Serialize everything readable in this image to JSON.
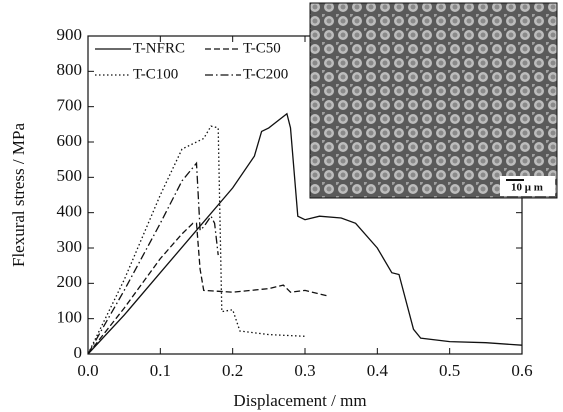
{
  "chart_data": {
    "type": "line",
    "xlabel": "Displacement / mm",
    "ylabel": "Flexural stress / MPa",
    "xlim": [
      0,
      0.6
    ],
    "ylim": [
      0,
      900
    ],
    "xticks": [
      {
        "value": 0,
        "label": "0.0"
      },
      0.1,
      0.2,
      0.3,
      0.4,
      0.5,
      0.6
    ],
    "yticks": [
      0,
      100,
      200,
      300,
      400,
      500,
      600,
      700,
      800,
      900
    ],
    "legend": "upper left",
    "inset_scale_bar": "10 μ m",
    "series": [
      {
        "name": "T-NFRC",
        "color": "#111111",
        "dash": "none",
        "x": [
          0,
          0.05,
          0.1,
          0.15,
          0.2,
          0.23,
          0.24,
          0.25,
          0.275,
          0.28,
          0.29,
          0.3,
          0.32,
          0.35,
          0.37,
          0.4,
          0.42,
          0.43,
          0.45,
          0.46,
          0.5,
          0.55,
          0.6
        ],
        "values": [
          0,
          110,
          230,
          350,
          470,
          560,
          630,
          640,
          680,
          640,
          390,
          380,
          390,
          385,
          370,
          300,
          230,
          225,
          70,
          45,
          35,
          32,
          25
        ]
      },
      {
        "name": "T-C50",
        "color": "#111111",
        "dash": "6,3",
        "x": [
          0,
          0.05,
          0.1,
          0.13,
          0.145,
          0.15,
          0.155,
          0.16,
          0.2,
          0.25,
          0.27,
          0.28,
          0.3,
          0.33
        ],
        "values": [
          0,
          130,
          270,
          340,
          370,
          370,
          240,
          180,
          175,
          185,
          195,
          175,
          180,
          165
        ]
      },
      {
        "name": "T-C100",
        "color": "#111111",
        "dash": "1.5,2.5",
        "x": [
          0,
          0.05,
          0.1,
          0.13,
          0.16,
          0.17,
          0.18,
          0.185,
          0.2,
          0.21,
          0.25,
          0.3
        ],
        "values": [
          0,
          210,
          450,
          580,
          610,
          645,
          640,
          120,
          125,
          65,
          55,
          50
        ]
      },
      {
        "name": "T-C200",
        "color": "#111111",
        "dash": "8,3,1.5,3",
        "x": [
          0,
          0.05,
          0.1,
          0.13,
          0.15,
          0.155,
          0.16,
          0.17,
          0.175,
          0.18
        ],
        "values": [
          0,
          180,
          370,
          490,
          540,
          350,
          360,
          390,
          370,
          280
        ]
      }
    ]
  }
}
